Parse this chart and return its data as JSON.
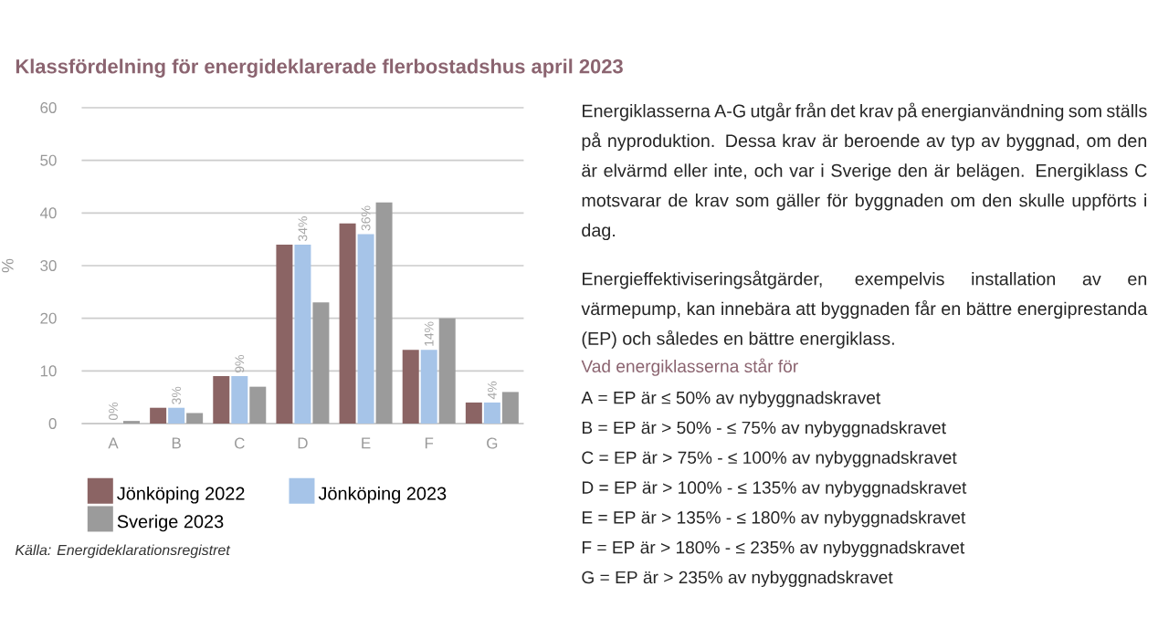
{
  "chart_data": {
    "type": "bar",
    "title": "Klassfördelning för energideklarerade flerbostadshus april 2023",
    "categories": [
      "A",
      "B",
      "C",
      "D",
      "E",
      "F",
      "G"
    ],
    "series": [
      {
        "name": "Jönköping 2022",
        "color": "#8b6464",
        "values": [
          0,
          3,
          9,
          34,
          38,
          14,
          4
        ]
      },
      {
        "name": "Jönköping 2023",
        "color": "#a6c4e8",
        "values": [
          0,
          3,
          9,
          34,
          36,
          14,
          4
        ],
        "value_labels": [
          "0%",
          "3%",
          "9%",
          "34%",
          "36%",
          "14%",
          "4%"
        ]
      },
      {
        "name": "Sverige 2023",
        "color": "#9b9b9b",
        "values": [
          0.5,
          2,
          7,
          23,
          42,
          20,
          6
        ]
      }
    ],
    "ylabel": "%",
    "ylim": [
      0,
      60
    ],
    "yticks": [
      0,
      10,
      20,
      30,
      40,
      50,
      60
    ],
    "grid": "y",
    "legend": "bottom",
    "annotations": [
      "Källa: Energideklarationsregistret",
      "Energiklasserna A-G utgår från det krav på energianvändning som ställs på nyproduktion. Dessa krav är beroende av typ av byggnad, om den är elvärmd eller inte, och var i Sverige den är belägen. Energiklass C motsvarar de krav som gäller för byggnaden om den skulle uppförts i dag.",
      "Energieffektiviseringsåtgärder, exempelvis installation av en värmepump, kan innebära att byggnaden får en bättre energiprestanda (EP) och således en bättre energiklass.",
      "Vad energiklasserna står för",
      "A = EP är ≤ 50% av nybyggnadskravet",
      "B = EP är > 50% - ≤ 75% av nybyggnadskravet",
      "C = EP är > 75% - ≤ 100% av nybyggnadskravet",
      "D = EP är > 100% - ≤ 135% av nybyggnadskravet",
      "E = EP är > 135% - ≤ 180% av nybyggnadskravet",
      "F = EP är > 180% - ≤ 235% av nybyggnadskravet",
      "G = EP är > 235% av nybyggnadskravet"
    ]
  }
}
